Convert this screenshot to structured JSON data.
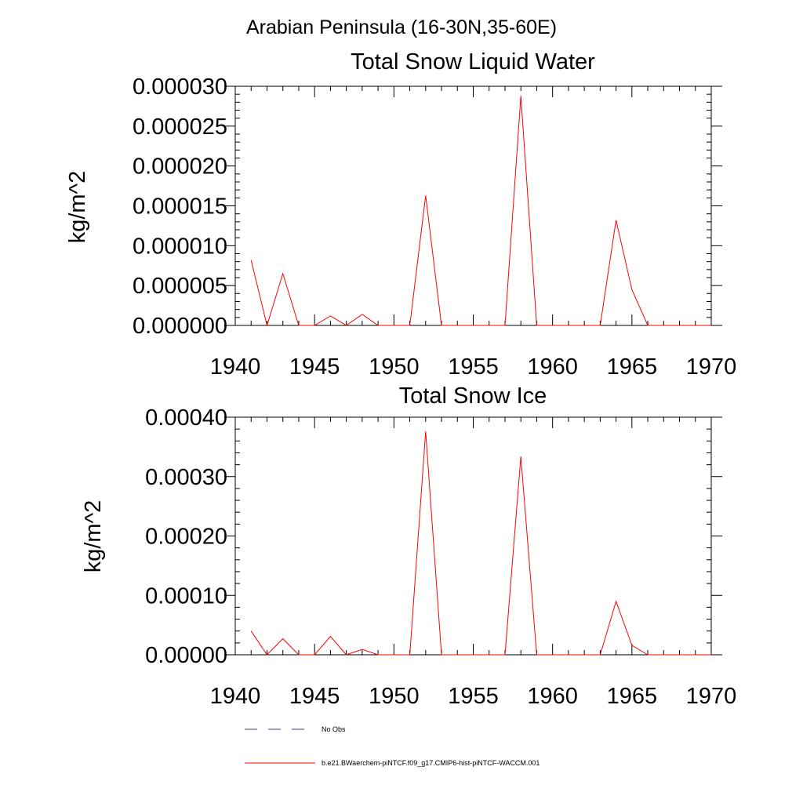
{
  "page_title": "Arabian Peninsula (16-30N,35-60E)",
  "colors": {
    "model": "#ff0000",
    "obs": "#3b3b9a",
    "axis": "#000000"
  },
  "legend": {
    "obs_label": "No Obs",
    "model_label": "b.e21.BWaerchem-piNTCF.f09_g17.CMIP6-hist-piNTCF-WACCM.001"
  },
  "chart_data": [
    {
      "type": "line",
      "title": "Total Snow Liquid Water",
      "xlabel": "",
      "ylabel": "kg/m^2",
      "xlim": [
        1940,
        1970
      ],
      "ylim": [
        0,
        3e-05
      ],
      "x_ticks": [
        "1940",
        "1945",
        "1950",
        "1955",
        "1960",
        "1965",
        "1970"
      ],
      "y_ticks": [
        "0.000000",
        "0.000005",
        "0.000010",
        "0.000015",
        "0.000020",
        "0.000025",
        "0.000030"
      ],
      "grid": false,
      "series": [
        {
          "name": "b.e21.BWaerchem-piNTCF.f09_g17.CMIP6-hist-piNTCF-WACCM.001",
          "x": [
            1941,
            1942,
            1943,
            1944,
            1945,
            1946,
            1947,
            1948,
            1949,
            1950,
            1951,
            1952,
            1953,
            1954,
            1955,
            1956,
            1957,
            1958,
            1959,
            1960,
            1961,
            1962,
            1963,
            1964,
            1965,
            1966,
            1967,
            1968,
            1969,
            1970
          ],
          "values": [
            8.2e-06,
            0,
            6.5e-06,
            0,
            0,
            1.2e-06,
            0,
            1.4e-06,
            0,
            0,
            0,
            1.63e-05,
            0,
            0,
            0,
            0,
            0,
            2.88e-05,
            0,
            0,
            0,
            0,
            0,
            1.32e-05,
            4.5e-06,
            0,
            0,
            0,
            0,
            0
          ]
        }
      ]
    },
    {
      "type": "line",
      "title": "Total Snow Ice",
      "xlabel": "",
      "ylabel": "kg/m^2",
      "xlim": [
        1940,
        1970
      ],
      "ylim": [
        0,
        0.0004
      ],
      "x_ticks": [
        "1940",
        "1945",
        "1950",
        "1955",
        "1960",
        "1965",
        "1970"
      ],
      "y_ticks": [
        "0.00000",
        "0.00010",
        "0.00020",
        "0.00030",
        "0.00040"
      ],
      "grid": false,
      "series": [
        {
          "name": "b.e21.BWaerchem-piNTCF.f09_g17.CMIP6-hist-piNTCF-WACCM.001",
          "x": [
            1941,
            1942,
            1943,
            1944,
            1945,
            1946,
            1947,
            1948,
            1949,
            1950,
            1951,
            1952,
            1953,
            1954,
            1955,
            1956,
            1957,
            1958,
            1959,
            1960,
            1961,
            1962,
            1963,
            1964,
            1965,
            1966,
            1967,
            1968,
            1969,
            1970
          ],
          "values": [
            4e-05,
            0,
            2.7e-05,
            0,
            0,
            3.1e-05,
            0,
            9e-06,
            0,
            0,
            0,
            0.000376,
            0,
            0,
            0,
            0,
            0,
            0.000334,
            0,
            0,
            0,
            0,
            0,
            9e-05,
            1.6e-05,
            0,
            0,
            0,
            0,
            0
          ]
        }
      ]
    }
  ]
}
